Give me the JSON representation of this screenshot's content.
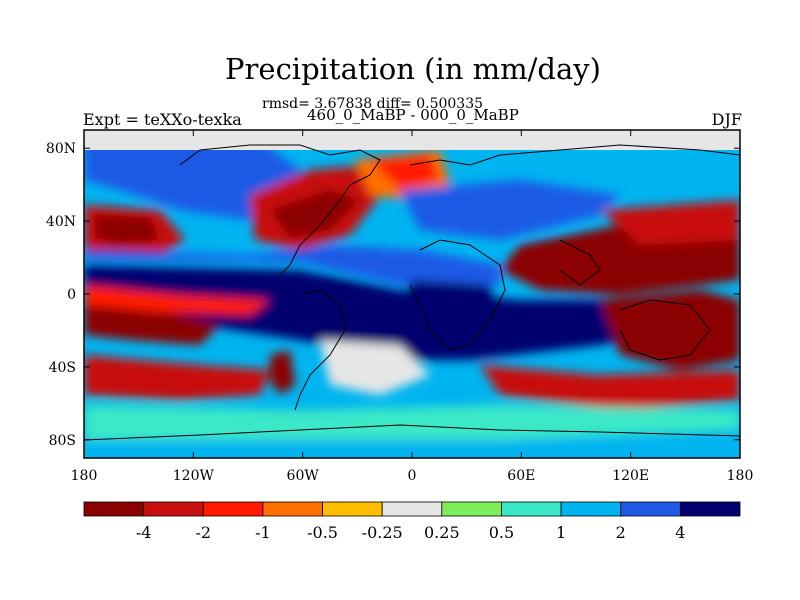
{
  "header": {
    "title": "Precipitation (in mm/day)",
    "stats": "rmsd= 3.67838 diff= 0.500335",
    "period": "460_0_MaBP - 000_0_MaBP",
    "experiment": "Expt = teXXo-texka",
    "season": "DJF"
  },
  "map": {
    "projection": "cylindrical-equidistant",
    "field": "precipitation difference",
    "lat_labels": [
      "80N",
      "40N",
      "0",
      "40S",
      "80S"
    ],
    "lon_labels": [
      "180",
      "120W",
      "60W",
      "0",
      "60E",
      "120E",
      "180"
    ]
  },
  "colorbar": {
    "labels": [
      "-4",
      "-2",
      "-1",
      "-0.5",
      "-0.25",
      "0.25",
      "0.5",
      "1",
      "2",
      "4"
    ],
    "colors": [
      "#8b0000",
      "#c81010",
      "#ff1a00",
      "#ff7000",
      "#ffbf00",
      "#e6e6e6",
      "#7ded5a",
      "#3ae8c8",
      "#00b4f0",
      "#1e5ae6",
      "#00006e"
    ]
  },
  "chart_data": {
    "type": "heatmap",
    "title": "Precipitation (in mm/day)",
    "x_ticks": [
      "180",
      "120W",
      "60W",
      "0",
      "60E",
      "120E",
      "180"
    ],
    "y_ticks": [
      "80N",
      "40N",
      "0",
      "40S",
      "80S"
    ],
    "xlim": [
      -180,
      180
    ],
    "ylim": [
      -90,
      90
    ],
    "contour_levels": [
      -4,
      -2,
      -1,
      -0.5,
      -0.25,
      0.25,
      0.5,
      1,
      2,
      4
    ],
    "regions": [
      {
        "lon": [
          -180,
          180
        ],
        "lat": [
          80,
          90
        ],
        "value": 0
      },
      {
        "lon": [
          -180,
          180
        ],
        "lat": [
          -8,
          12
        ],
        "value": 5
      },
      {
        "lon": [
          -180,
          -120
        ],
        "lat": [
          -30,
          -5
        ],
        "value": -5
      },
      {
        "lon": [
          100,
          180
        ],
        "lat": [
          -40,
          -5
        ],
        "value": -5
      },
      {
        "lon": [
          60,
          180
        ],
        "lat": [
          5,
          45
        ],
        "value": -5
      },
      {
        "lon": [
          -180,
          -145
        ],
        "lat": [
          25,
          45
        ],
        "value": -5
      },
      {
        "lon": [
          -100,
          -60
        ],
        "lat": [
          25,
          50
        ],
        "value": -5
      },
      {
        "lon": [
          -180,
          -90
        ],
        "lat": [
          -50,
          -30
        ],
        "value": -5
      },
      {
        "lon": [
          100,
          180
        ],
        "lat": [
          -60,
          -40
        ],
        "value": -5
      },
      {
        "lon": [
          -30,
          0
        ],
        "lat": [
          52,
          72
        ],
        "value": -3
      },
      {
        "lon": [
          -180,
          180
        ],
        "lat": [
          -75,
          -60
        ],
        "value": 2
      },
      {
        "lon": [
          -100,
          -60
        ],
        "lat": [
          -25,
          -5
        ],
        "value": 5
      },
      {
        "lon": [
          -40,
          30
        ],
        "lat": [
          -40,
          -25
        ],
        "value": 0
      },
      {
        "lon": [
          -150,
          -60
        ],
        "lat": [
          48,
          70
        ],
        "value": 1
      }
    ]
  }
}
